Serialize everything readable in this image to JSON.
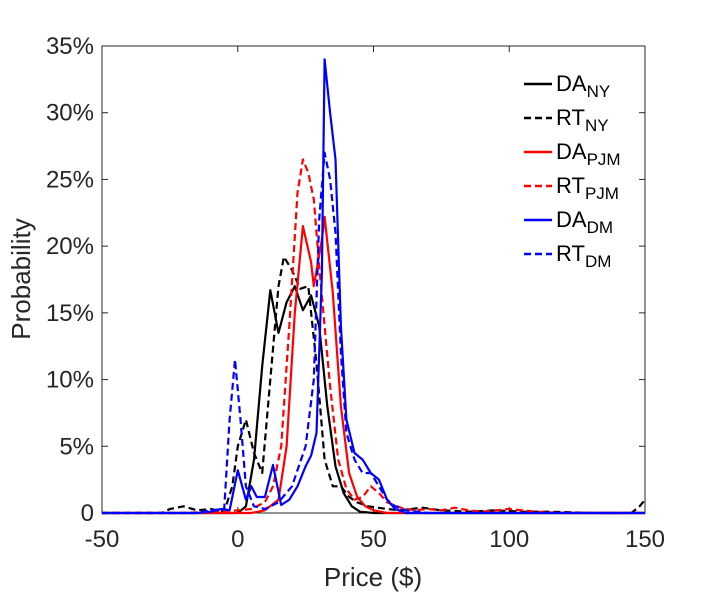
{
  "chart_data": {
    "type": "line",
    "xlabel": "Price ($)",
    "ylabel": "Probability",
    "xlim": [
      -50,
      150
    ],
    "ylim": [
      0,
      0.35
    ],
    "xticks": [
      "-50",
      "0",
      "50",
      "100",
      "150"
    ],
    "yticks": [
      "0",
      "5%",
      "10%",
      "15%",
      "20%",
      "25%",
      "30%",
      "35%"
    ],
    "legend_position": "top-right",
    "series": [
      {
        "name": "DA",
        "sub": "NY",
        "color": "#000000",
        "dash": "solid",
        "points": [
          [
            -50,
            0
          ],
          [
            -10,
            0
          ],
          [
            0,
            0
          ],
          [
            3,
            0.005
          ],
          [
            6,
            0.04
          ],
          [
            9,
            0.11
          ],
          [
            12,
            0.167
          ],
          [
            15,
            0.135
          ],
          [
            18,
            0.158
          ],
          [
            21,
            0.17
          ],
          [
            24,
            0.152
          ],
          [
            27,
            0.163
          ],
          [
            30,
            0.14
          ],
          [
            33,
            0.08
          ],
          [
            36,
            0.035
          ],
          [
            39,
            0.015
          ],
          [
            42,
            0.005
          ],
          [
            45,
            0.001
          ],
          [
            50,
            0
          ],
          [
            150,
            0
          ]
        ]
      },
      {
        "name": "RT",
        "sub": "NY",
        "color": "#000000",
        "dash": "dashed",
        "points": [
          [
            -50,
            0
          ],
          [
            -28,
            0
          ],
          [
            -25,
            0.003
          ],
          [
            -20,
            0.005
          ],
          [
            -15,
            0.002
          ],
          [
            -10,
            0.003
          ],
          [
            -5,
            0.001
          ],
          [
            -2,
            0.02
          ],
          [
            0,
            0.05
          ],
          [
            3,
            0.07
          ],
          [
            6,
            0.045
          ],
          [
            9,
            0.03
          ],
          [
            12,
            0.1
          ],
          [
            15,
            0.17
          ],
          [
            17,
            0.192
          ],
          [
            20,
            0.182
          ],
          [
            23,
            0.168
          ],
          [
            26,
            0.17
          ],
          [
            29,
            0.112
          ],
          [
            32,
            0.04
          ],
          [
            35,
            0.02
          ],
          [
            38,
            0.02
          ],
          [
            41,
            0.012
          ],
          [
            44,
            0.008
          ],
          [
            48,
            0.005
          ],
          [
            55,
            0.003
          ],
          [
            60,
            0.002
          ],
          [
            68,
            0.004
          ],
          [
            75,
            0.002
          ],
          [
            85,
            0.001
          ],
          [
            95,
            0.002
          ],
          [
            105,
            0.001
          ],
          [
            115,
            0.001
          ],
          [
            130,
            0
          ],
          [
            145,
            0
          ],
          [
            148,
            0.005
          ],
          [
            150,
            0.01
          ]
        ]
      },
      {
        "name": "DA",
        "sub": "PJM",
        "color": "#ff0000",
        "dash": "solid",
        "points": [
          [
            -50,
            0
          ],
          [
            5,
            0
          ],
          [
            10,
            0.002
          ],
          [
            15,
            0.01
          ],
          [
            18,
            0.05
          ],
          [
            21,
            0.15
          ],
          [
            24,
            0.215
          ],
          [
            27,
            0.188
          ],
          [
            28,
            0.17
          ],
          [
            31,
            0.205
          ],
          [
            32,
            0.222
          ],
          [
            35,
            0.165
          ],
          [
            38,
            0.08
          ],
          [
            41,
            0.03
          ],
          [
            44,
            0.012
          ],
          [
            47,
            0.005
          ],
          [
            50,
            0.002
          ],
          [
            55,
            0
          ],
          [
            150,
            0
          ]
        ]
      },
      {
        "name": "RT",
        "sub": "PJM",
        "color": "#ff0000",
        "dash": "dashed",
        "points": [
          [
            -50,
            0
          ],
          [
            -20,
            0
          ],
          [
            -10,
            0.001
          ],
          [
            0,
            0.002
          ],
          [
            5,
            0.003
          ],
          [
            10,
            0.008
          ],
          [
            13,
            0.02
          ],
          [
            16,
            0.05
          ],
          [
            19,
            0.14
          ],
          [
            22,
            0.24
          ],
          [
            24,
            0.265
          ],
          [
            26,
            0.255
          ],
          [
            28,
            0.235
          ],
          [
            30,
            0.185
          ],
          [
            32,
            0.14
          ],
          [
            34,
            0.095
          ],
          [
            37,
            0.04
          ],
          [
            40,
            0.018
          ],
          [
            43,
            0.01
          ],
          [
            46,
            0.012
          ],
          [
            49,
            0.02
          ],
          [
            52,
            0.015
          ],
          [
            55,
            0.008
          ],
          [
            60,
            0.004
          ],
          [
            65,
            0.002
          ],
          [
            70,
            0.003
          ],
          [
            75,
            0.002
          ],
          [
            80,
            0.004
          ],
          [
            85,
            0.002
          ],
          [
            90,
            0.001
          ],
          [
            100,
            0.003
          ],
          [
            110,
            0.001
          ],
          [
            120,
            0
          ],
          [
            150,
            0
          ]
        ]
      },
      {
        "name": "DA",
        "sub": "DM",
        "color": "#0000ff",
        "dash": "solid",
        "points": [
          [
            -50,
            0
          ],
          [
            -15,
            0
          ],
          [
            -10,
            0.001
          ],
          [
            -6,
            0.003
          ],
          [
            -3,
            0.002
          ],
          [
            0,
            0.032
          ],
          [
            3,
            0.01
          ],
          [
            5,
            0.02
          ],
          [
            7,
            0.012
          ],
          [
            10,
            0.012
          ],
          [
            13,
            0.036
          ],
          [
            16,
            0.006
          ],
          [
            19,
            0.01
          ],
          [
            22,
            0.02
          ],
          [
            25,
            0.035
          ],
          [
            27,
            0.043
          ],
          [
            29,
            0.06
          ],
          [
            31,
            0.18
          ],
          [
            32,
            0.34
          ],
          [
            34,
            0.3
          ],
          [
            36,
            0.265
          ],
          [
            38,
            0.14
          ],
          [
            40,
            0.07
          ],
          [
            43,
            0.045
          ],
          [
            46,
            0.04
          ],
          [
            49,
            0.03
          ],
          [
            52,
            0.025
          ],
          [
            55,
            0.01
          ],
          [
            58,
            0.003
          ],
          [
            62,
            0
          ],
          [
            150,
            0
          ]
        ]
      },
      {
        "name": "RT",
        "sub": "DM",
        "color": "#0000ff",
        "dash": "dashed",
        "points": [
          [
            -50,
            0
          ],
          [
            -15,
            0
          ],
          [
            -10,
            0.002
          ],
          [
            -5,
            0.003
          ],
          [
            -3,
            0.07
          ],
          [
            -1,
            0.115
          ],
          [
            1,
            0.07
          ],
          [
            3,
            0.02
          ],
          [
            6,
            0.005
          ],
          [
            10,
            0.003
          ],
          [
            15,
            0.008
          ],
          [
            20,
            0.02
          ],
          [
            25,
            0.05
          ],
          [
            28,
            0.1
          ],
          [
            30,
            0.22
          ],
          [
            32,
            0.27
          ],
          [
            34,
            0.25
          ],
          [
            36,
            0.21
          ],
          [
            38,
            0.12
          ],
          [
            40,
            0.06
          ],
          [
            43,
            0.04
          ],
          [
            46,
            0.03
          ],
          [
            49,
            0.03
          ],
          [
            52,
            0.02
          ],
          [
            55,
            0.01
          ],
          [
            58,
            0.005
          ],
          [
            62,
            0.002
          ],
          [
            70,
            0
          ],
          [
            150,
            0
          ]
        ]
      }
    ]
  }
}
